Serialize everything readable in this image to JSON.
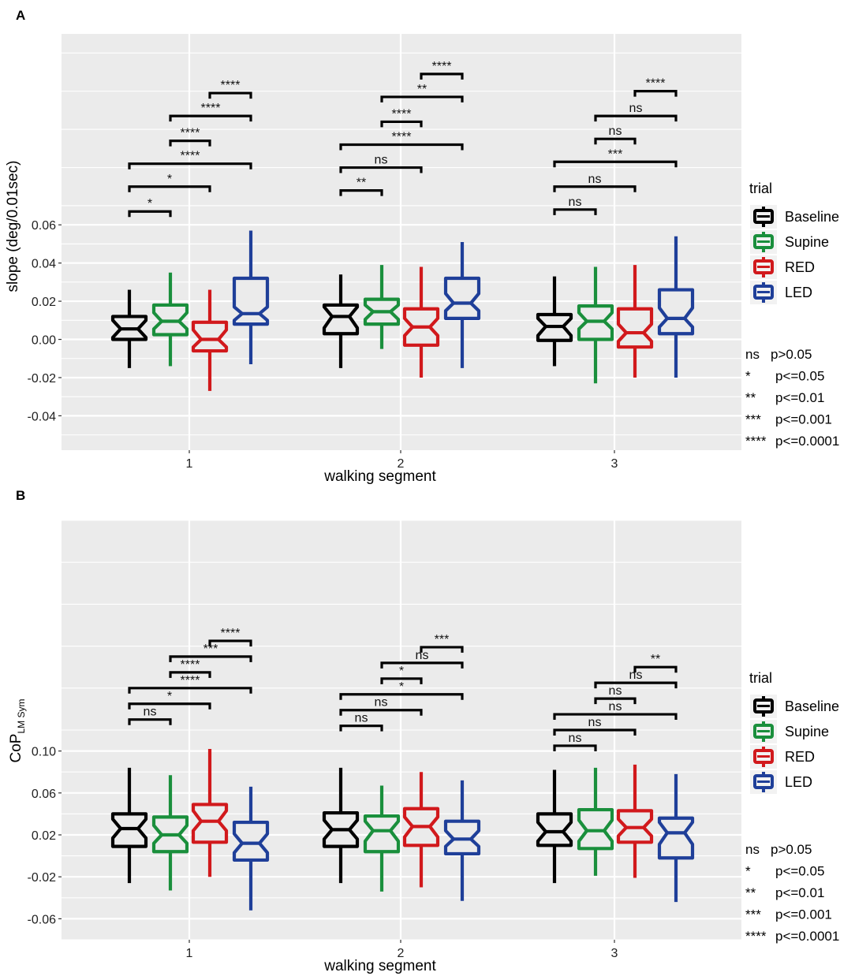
{
  "chart_data": [
    {
      "type": "boxplot",
      "panel_label": "A",
      "xlabel": "walking segment",
      "ylabel": "slope (deg/0.01sec)",
      "ylim": [
        -0.058,
        0.16
      ],
      "yticks": [
        0.06,
        0.04,
        0.02,
        0.0,
        -0.02,
        -0.04
      ],
      "ytick_labels": [
        "0.06",
        "0.04",
        "0.02",
        "0.00",
        "-0.02",
        "-0.04"
      ],
      "categories": [
        "1",
        "2",
        "3"
      ],
      "legend_title": "trial",
      "series": [
        {
          "name": "Baseline",
          "color": "#000000",
          "boxes": [
            {
              "whisker_low": -0.015,
              "q1": 0.0,
              "notch_low": 0.001,
              "median": 0.0055,
              "notch_high": 0.01,
              "q3": 0.012,
              "whisker_high": 0.026
            },
            {
              "whisker_low": -0.015,
              "q1": 0.003,
              "notch_low": 0.006,
              "median": 0.012,
              "notch_high": 0.017,
              "q3": 0.018,
              "whisker_high": 0.034
            },
            {
              "whisker_low": -0.014,
              "q1": -0.0005,
              "notch_low": 0.002,
              "median": 0.0068,
              "notch_high": 0.011,
              "q3": 0.013,
              "whisker_high": 0.033
            }
          ]
        },
        {
          "name": "Supine",
          "color": "#1a8f3c",
          "boxes": [
            {
              "whisker_low": -0.014,
              "q1": 0.0025,
              "notch_low": 0.0055,
              "median": 0.0095,
              "notch_high": 0.014,
              "q3": 0.018,
              "whisker_high": 0.035
            },
            {
              "whisker_low": -0.005,
              "q1": 0.008,
              "notch_low": 0.0105,
              "median": 0.0145,
              "notch_high": 0.018,
              "q3": 0.021,
              "whisker_high": 0.039
            },
            {
              "whisker_low": -0.023,
              "q1": 0.0,
              "notch_low": 0.0055,
              "median": 0.0095,
              "notch_high": 0.014,
              "q3": 0.0175,
              "whisker_high": 0.038
            }
          ]
        },
        {
          "name": "RED",
          "color": "#d1191c",
          "boxes": [
            {
              "whisker_low": -0.027,
              "q1": -0.006,
              "notch_low": -0.004,
              "median": 0.0,
              "notch_high": 0.005,
              "q3": 0.009,
              "whisker_high": 0.026
            },
            {
              "whisker_low": -0.02,
              "q1": -0.003,
              "notch_low": 0.002,
              "median": 0.0065,
              "notch_high": 0.011,
              "q3": 0.016,
              "whisker_high": 0.038
            },
            {
              "whisker_low": -0.02,
              "q1": -0.004,
              "notch_low": -0.001,
              "median": 0.0035,
              "notch_high": 0.008,
              "q3": 0.016,
              "whisker_high": 0.039
            }
          ]
        },
        {
          "name": "LED",
          "color": "#1f3f99",
          "boxes": [
            {
              "whisker_low": -0.013,
              "q1": 0.008,
              "notch_low": 0.01,
              "median": 0.0135,
              "notch_high": 0.017,
              "q3": 0.032,
              "whisker_high": 0.057
            },
            {
              "whisker_low": -0.015,
              "q1": 0.011,
              "notch_low": 0.015,
              "median": 0.019,
              "notch_high": 0.024,
              "q3": 0.032,
              "whisker_high": 0.051
            },
            {
              "whisker_low": -0.02,
              "q1": 0.003,
              "notch_low": 0.0065,
              "median": 0.011,
              "notch_high": 0.0165,
              "q3": 0.026,
              "whisker_high": 0.054
            }
          ]
        }
      ],
      "comparisons": [
        {
          "segment": "1",
          "pair": [
            "Baseline",
            "Supine"
          ],
          "label": "*",
          "y": 0.067
        },
        {
          "segment": "1",
          "pair": [
            "Baseline",
            "RED"
          ],
          "label": "*",
          "y": 0.08
        },
        {
          "segment": "1",
          "pair": [
            "Baseline",
            "LED"
          ],
          "label": "****",
          "y": 0.092
        },
        {
          "segment": "1",
          "pair": [
            "Supine",
            "RED"
          ],
          "label": "****",
          "y": 0.104
        },
        {
          "segment": "1",
          "pair": [
            "Supine",
            "LED"
          ],
          "label": "****",
          "y": 0.117
        },
        {
          "segment": "1",
          "pair": [
            "RED",
            "LED"
          ],
          "label": "****",
          "y": 0.129
        },
        {
          "segment": "2",
          "pair": [
            "Baseline",
            "Supine"
          ],
          "label": "**",
          "y": 0.078
        },
        {
          "segment": "2",
          "pair": [
            "Baseline",
            "RED"
          ],
          "label": "ns",
          "y": 0.09
        },
        {
          "segment": "2",
          "pair": [
            "Baseline",
            "LED"
          ],
          "label": "****",
          "y": 0.102
        },
        {
          "segment": "2",
          "pair": [
            "Supine",
            "RED"
          ],
          "label": "****",
          "y": 0.114
        },
        {
          "segment": "2",
          "pair": [
            "Supine",
            "LED"
          ],
          "label": "**",
          "y": 0.127
        },
        {
          "segment": "2",
          "pair": [
            "RED",
            "LED"
          ],
          "label": "****",
          "y": 0.139
        },
        {
          "segment": "3",
          "pair": [
            "Baseline",
            "Supine"
          ],
          "label": "ns",
          "y": 0.068
        },
        {
          "segment": "3",
          "pair": [
            "Baseline",
            "RED"
          ],
          "label": "ns",
          "y": 0.08
        },
        {
          "segment": "3",
          "pair": [
            "Baseline",
            "LED"
          ],
          "label": "***",
          "y": 0.093
        },
        {
          "segment": "3",
          "pair": [
            "Supine",
            "RED"
          ],
          "label": "ns",
          "y": 0.105
        },
        {
          "segment": "3",
          "pair": [
            "Supine",
            "LED"
          ],
          "label": "ns",
          "y": 0.117
        },
        {
          "segment": "3",
          "pair": [
            "RED",
            "LED"
          ],
          "label": "****",
          "y": 0.13
        }
      ]
    },
    {
      "type": "boxplot",
      "panel_label": "B",
      "xlabel": "walking segment",
      "ylabel_main": "CoP",
      "ylabel_sub": "LM Sym",
      "ylim": [
        -0.08,
        0.32
      ],
      "yticks": [
        0.1,
        0.06,
        0.02,
        -0.02,
        -0.06
      ],
      "ytick_labels": [
        "0.10",
        "0.06",
        "0.02",
        "-0.02",
        "-0.06"
      ],
      "categories": [
        "1",
        "2",
        "3"
      ],
      "legend_title": "trial",
      "series": [
        {
          "name": "Baseline",
          "color": "#000000",
          "boxes": [
            {
              "whisker_low": -0.026,
              "q1": 0.009,
              "notch_low": 0.017,
              "median": 0.026,
              "notch_high": 0.035,
              "q3": 0.04,
              "whisker_high": 0.084
            },
            {
              "whisker_low": -0.026,
              "q1": 0.009,
              "notch_low": 0.016,
              "median": 0.025,
              "notch_high": 0.034,
              "q3": 0.041,
              "whisker_high": 0.084
            },
            {
              "whisker_low": -0.026,
              "q1": 0.01,
              "notch_low": 0.014,
              "median": 0.023,
              "notch_high": 0.032,
              "q3": 0.04,
              "whisker_high": 0.082
            }
          ]
        },
        {
          "name": "Supine",
          "color": "#1a8f3c",
          "boxes": [
            {
              "whisker_low": -0.033,
              "q1": 0.004,
              "notch_low": 0.012,
              "median": 0.02,
              "notch_high": 0.029,
              "q3": 0.037,
              "whisker_high": 0.077
            },
            {
              "whisker_low": -0.034,
              "q1": 0.004,
              "notch_low": 0.014,
              "median": 0.024,
              "notch_high": 0.033,
              "q3": 0.038,
              "whisker_high": 0.067
            },
            {
              "whisker_low": -0.019,
              "q1": 0.007,
              "notch_low": 0.014,
              "median": 0.024,
              "notch_high": 0.034,
              "q3": 0.044,
              "whisker_high": 0.084
            }
          ]
        },
        {
          "name": "RED",
          "color": "#d1191c",
          "boxes": [
            {
              "whisker_low": -0.02,
              "q1": 0.013,
              "notch_low": 0.024,
              "median": 0.033,
              "notch_high": 0.043,
              "q3": 0.049,
              "whisker_high": 0.102
            },
            {
              "whisker_low": -0.03,
              "q1": 0.01,
              "notch_low": 0.018,
              "median": 0.028,
              "notch_high": 0.037,
              "q3": 0.045,
              "whisker_high": 0.08
            },
            {
              "whisker_low": -0.021,
              "q1": 0.013,
              "notch_low": 0.019,
              "median": 0.027,
              "notch_high": 0.035,
              "q3": 0.043,
              "whisker_high": 0.087
            }
          ]
        },
        {
          "name": "LED",
          "color": "#1f3f99",
          "boxes": [
            {
              "whisker_low": -0.052,
              "q1": -0.004,
              "notch_low": 0.003,
              "median": 0.012,
              "notch_high": 0.021,
              "q3": 0.032,
              "whisker_high": 0.066
            },
            {
              "whisker_low": -0.043,
              "q1": 0.002,
              "notch_low": 0.009,
              "median": 0.016,
              "notch_high": 0.024,
              "q3": 0.033,
              "whisker_high": 0.072
            },
            {
              "whisker_low": -0.044,
              "q1": -0.002,
              "notch_low": 0.011,
              "median": 0.022,
              "notch_high": 0.032,
              "q3": 0.036,
              "whisker_high": 0.078
            }
          ]
        }
      ],
      "comparisons": [
        {
          "segment": "1",
          "pair": [
            "Baseline",
            "Supine"
          ],
          "label": "ns",
          "y": 0.13
        },
        {
          "segment": "1",
          "pair": [
            "Baseline",
            "RED"
          ],
          "label": "*",
          "y": 0.145
        },
        {
          "segment": "1",
          "pair": [
            "Baseline",
            "LED"
          ],
          "label": "****",
          "y": 0.16
        },
        {
          "segment": "1",
          "pair": [
            "Supine",
            "RED"
          ],
          "label": "****",
          "y": 0.175
        },
        {
          "segment": "1",
          "pair": [
            "Supine",
            "LED"
          ],
          "label": "***",
          "y": 0.19
        },
        {
          "segment": "1",
          "pair": [
            "RED",
            "LED"
          ],
          "label": "****",
          "y": 0.205
        },
        {
          "segment": "2",
          "pair": [
            "Baseline",
            "Supine"
          ],
          "label": "ns",
          "y": 0.124
        },
        {
          "segment": "2",
          "pair": [
            "Baseline",
            "RED"
          ],
          "label": "ns",
          "y": 0.139
        },
        {
          "segment": "2",
          "pair": [
            "Baseline",
            "LED"
          ],
          "label": "*",
          "y": 0.154
        },
        {
          "segment": "2",
          "pair": [
            "Supine",
            "RED"
          ],
          "label": "*",
          "y": 0.169
        },
        {
          "segment": "2",
          "pair": [
            "Supine",
            "LED"
          ],
          "label": "ns",
          "y": 0.184
        },
        {
          "segment": "2",
          "pair": [
            "RED",
            "LED"
          ],
          "label": "***",
          "y": 0.199
        },
        {
          "segment": "3",
          "pair": [
            "Baseline",
            "Supine"
          ],
          "label": "ns",
          "y": 0.105
        },
        {
          "segment": "3",
          "pair": [
            "Baseline",
            "RED"
          ],
          "label": "ns",
          "y": 0.12
        },
        {
          "segment": "3",
          "pair": [
            "Baseline",
            "LED"
          ],
          "label": "ns",
          "y": 0.135
        },
        {
          "segment": "3",
          "pair": [
            "Supine",
            "RED"
          ],
          "label": "ns",
          "y": 0.15
        },
        {
          "segment": "3",
          "pair": [
            "Supine",
            "LED"
          ],
          "label": "ns",
          "y": 0.165
        },
        {
          "segment": "3",
          "pair": [
            "RED",
            "LED"
          ],
          "label": "**",
          "y": 0.18
        }
      ]
    }
  ],
  "significance_key": [
    {
      "symbol": "ns",
      "meaning": "p>0.05"
    },
    {
      "symbol": "*",
      "meaning": "p<=0.05"
    },
    {
      "symbol": "**",
      "meaning": "p<=0.01"
    },
    {
      "symbol": "***",
      "meaning": "p<=0.001"
    },
    {
      "symbol": "****",
      "meaning": "p<=0.0001"
    }
  ]
}
